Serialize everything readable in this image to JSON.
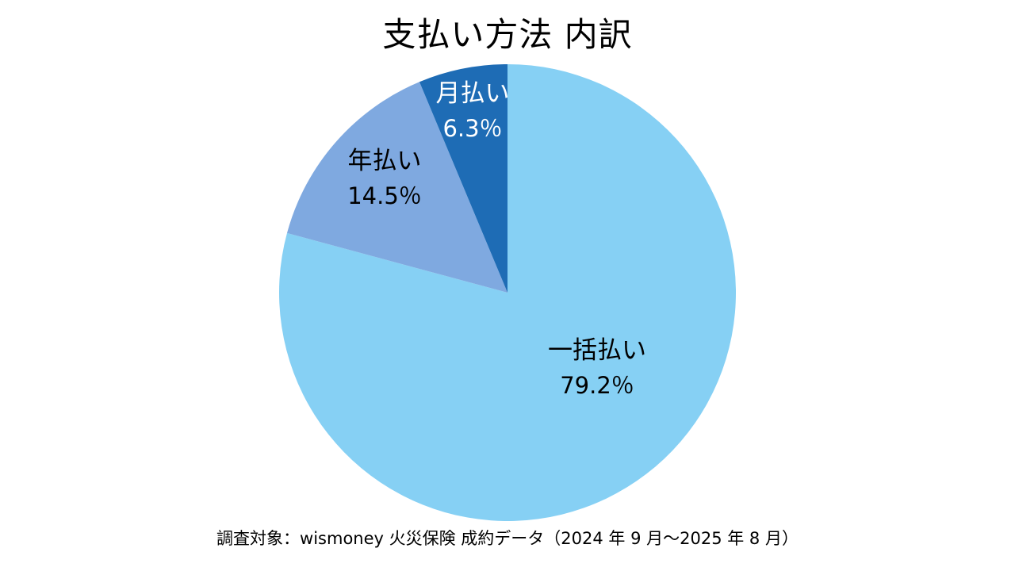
{
  "title": "支払い方法 内訳",
  "footnote": "調査対象：wismoney 火災保険 成約データ（2024 年 9 月～2025 年 8 月）",
  "colors": {
    "background": "#FFFFFF",
    "title_text": "#000000",
    "footnote_text": "#000000"
  },
  "chart_data": {
    "type": "pie",
    "title": "支払い方法 内訳",
    "direction": "clockwise",
    "start_angle_deg": 0,
    "legend": "none",
    "center": [
      640,
      369
    ],
    "radius": 288,
    "slices": [
      {
        "key": "lump-sum",
        "label": "一括払い",
        "value": 79.2,
        "display": "79.2％",
        "color": "#86D0F4",
        "label_color": "#000000"
      },
      {
        "key": "annual",
        "label": "年払い",
        "value": 14.5,
        "display": "14.5％",
        "color": "#7FA9E0",
        "label_color": "#000000"
      },
      {
        "key": "monthly",
        "label": "月払い",
        "value": 6.3,
        "display": "6.3％",
        "color": "#1E6CB5",
        "label_color": "#FFFFFF"
      }
    ]
  }
}
